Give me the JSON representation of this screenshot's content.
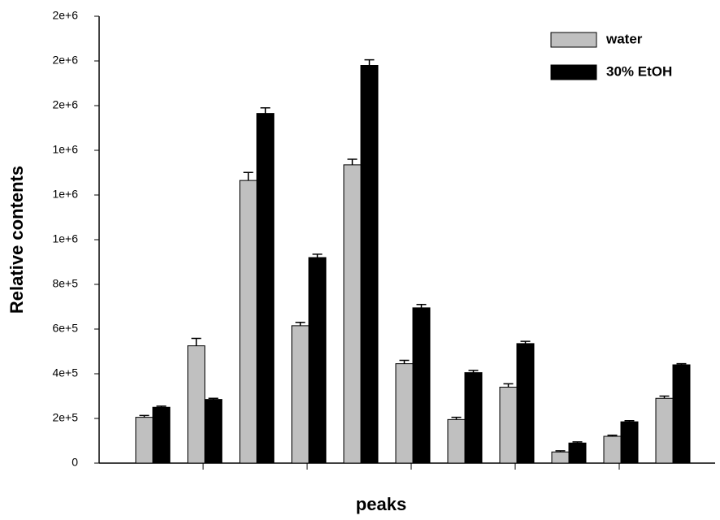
{
  "chart_data": {
    "type": "bar",
    "xlabel": "peaks",
    "ylabel": "Relative contents",
    "categories": [
      null,
      null,
      null,
      null,
      null,
      null,
      null,
      null,
      null,
      null,
      null
    ],
    "series": [
      {
        "name": "water",
        "color": "#c0c0c0",
        "values": [
          205000,
          525000,
          1265000,
          615000,
          1335000,
          445000,
          195000,
          340000,
          50000,
          120000,
          290000
        ],
        "errors": [
          8000,
          33000,
          36000,
          15000,
          25000,
          15000,
          10000,
          15000,
          5000,
          5000,
          10000
        ]
      },
      {
        "name": "30% EtOH",
        "color": "#000000",
        "values": [
          250000,
          285000,
          1565000,
          920000,
          1780000,
          695000,
          405000,
          535000,
          90000,
          185000,
          440000
        ],
        "errors": [
          5000,
          5000,
          25000,
          15000,
          25000,
          15000,
          10000,
          10000,
          5000,
          5000,
          5000
        ]
      }
    ],
    "ylim": [
      0,
      2000000
    ],
    "yticks": [
      0,
      {
        "value": 200000,
        "label": "2e+5"
      },
      {
        "value": 400000,
        "label": "4e+5"
      },
      {
        "value": 600000,
        "label": "6e+5"
      },
      {
        "value": 800000,
        "label": "8e+5"
      },
      {
        "value": 1000000,
        "label": "1e+6"
      },
      {
        "value": 1200000,
        "label": "1e+6"
      },
      {
        "value": 1400000,
        "label": "1e+6"
      },
      {
        "value": 1600000,
        "label": "2e+6"
      },
      {
        "value": 1800000,
        "label": "2e+6"
      },
      {
        "value": 2000000,
        "label": "2e+6"
      }
    ],
    "legend": "upper right"
  }
}
